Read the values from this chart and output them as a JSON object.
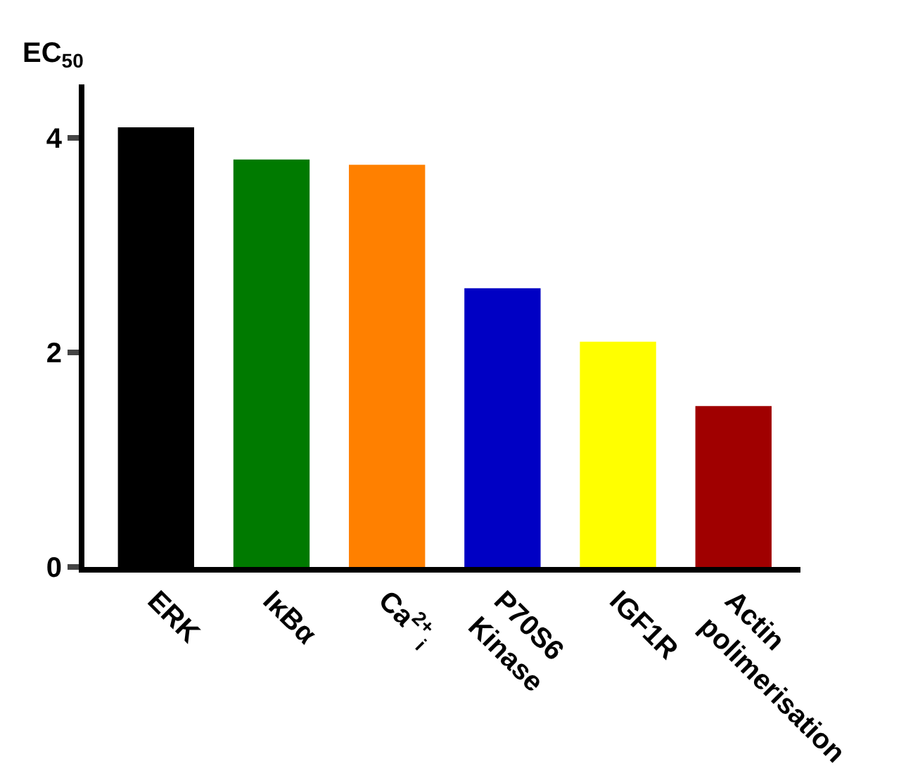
{
  "chart_data": {
    "type": "bar",
    "ylabel": "EC$_{50}$",
    "categories": [
      "ERK",
      "IκBα",
      "Ca$^{2+}$$_{i}$",
      "P70S6\nKinase",
      "IGF1R",
      "Actin\npolimerisation"
    ],
    "values": [
      4.1,
      3.8,
      3.75,
      2.6,
      2.1,
      1.5
    ],
    "colors": [
      "#000000",
      "#007a00",
      "#ff8000",
      "#0000c4",
      "#ffff00",
      "#a00000"
    ],
    "ylim": [
      0,
      4.5
    ],
    "yticks": [
      0,
      2,
      4
    ]
  }
}
